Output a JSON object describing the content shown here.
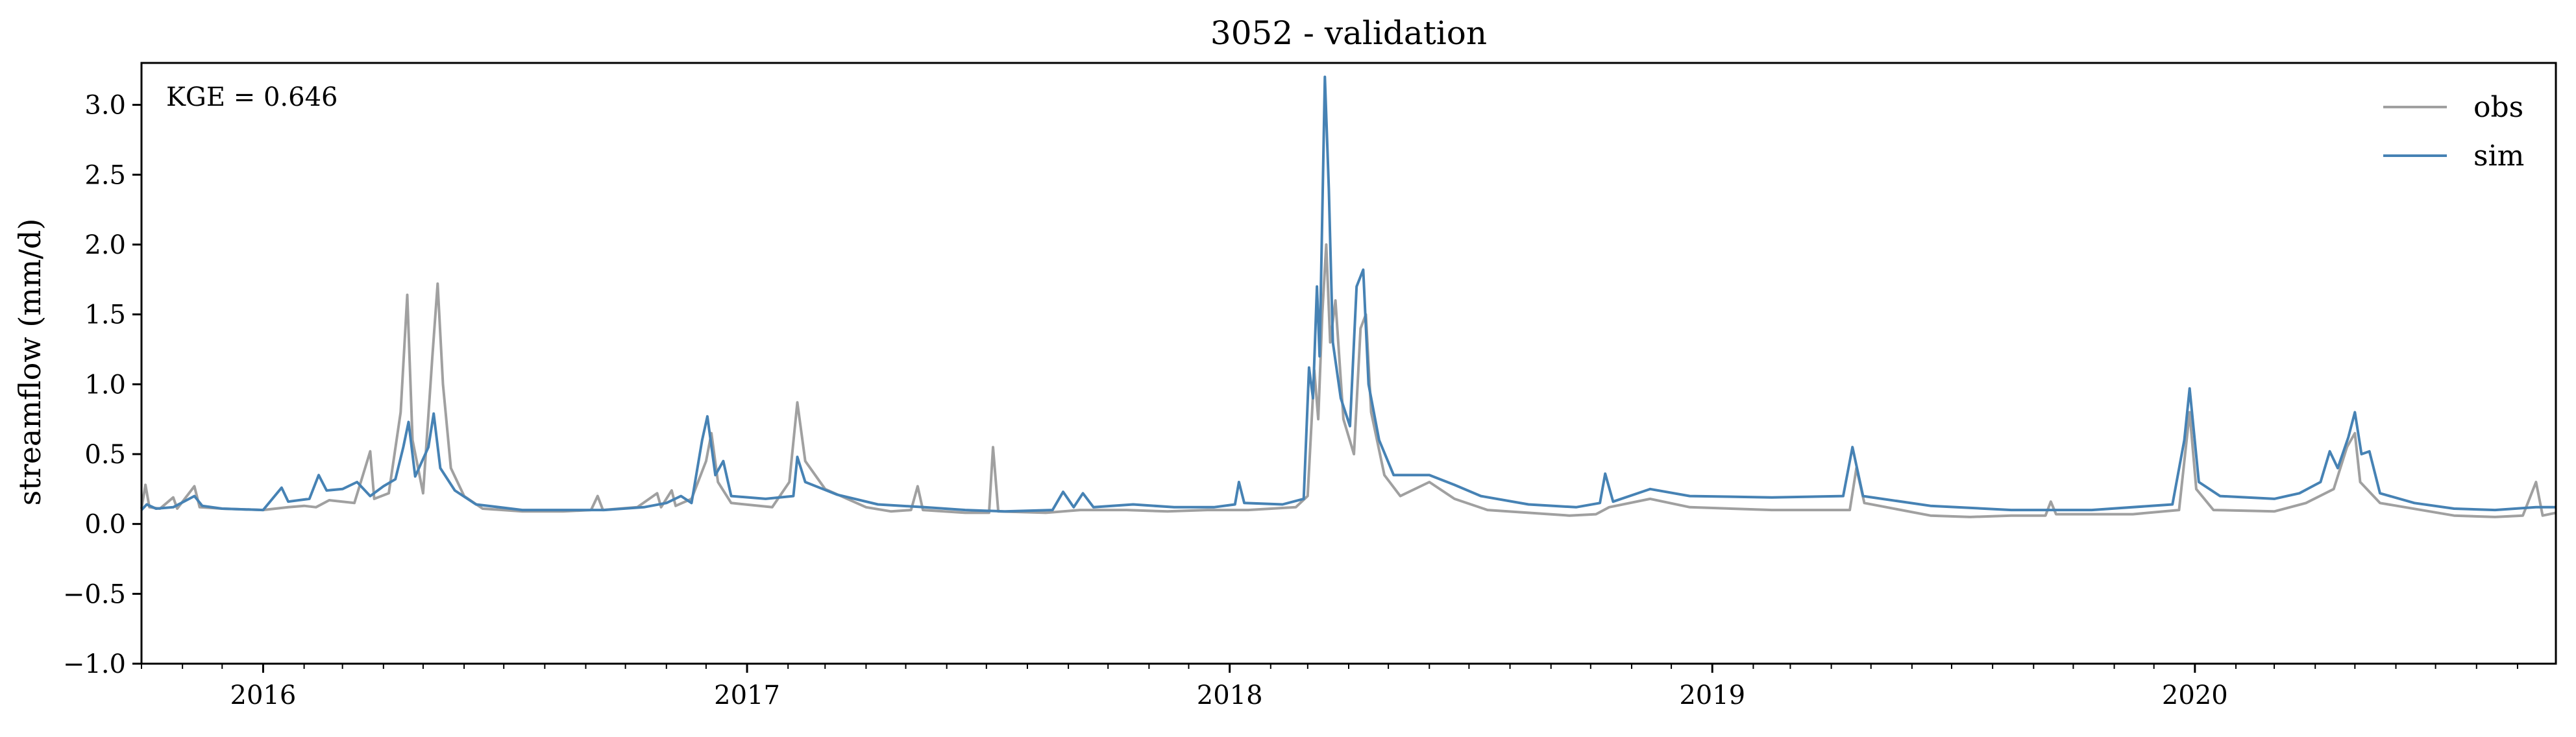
{
  "chart_data": {
    "type": "line",
    "title": "3052 - validation",
    "xlabel": "",
    "ylabel": "streamflow (mm/d)",
    "ylim": [
      -1.0,
      3.3
    ],
    "xlim": [
      "2015-10-01",
      "2020-09-30"
    ],
    "y_ticks": [
      -1.0,
      -0.5,
      0.0,
      0.5,
      1.0,
      1.5,
      2.0,
      2.5,
      3.0
    ],
    "y_tick_labels": [
      "−1.0",
      "−0.5",
      "0.0",
      "0.5",
      "1.0",
      "1.5",
      "2.0",
      "2.5",
      "3.0"
    ],
    "x_tick_labels": [
      "2016",
      "2017",
      "2018",
      "2019",
      "2020"
    ],
    "x_ticks": [
      "2016-01-01",
      "2017-01-01",
      "2018-01-01",
      "2019-01-01",
      "2020-01-01"
    ],
    "annotation": "KGE = 0.646",
    "legend": {
      "placement": "top-right",
      "entries": [
        "obs",
        "sim"
      ]
    },
    "grid": false,
    "series": [
      {
        "name": "obs",
        "color": "#a0a0a0",
        "points": [
          [
            "2015-10-01",
            0.11
          ],
          [
            "2015-10-04",
            0.28
          ],
          [
            "2015-10-07",
            0.12
          ],
          [
            "2015-10-15",
            0.11
          ],
          [
            "2015-10-25",
            0.19
          ],
          [
            "2015-10-28",
            0.11
          ],
          [
            "2015-11-10",
            0.27
          ],
          [
            "2015-11-14",
            0.12
          ],
          [
            "2015-12-01",
            0.11
          ],
          [
            "2016-01-01",
            0.1
          ],
          [
            "2016-01-20",
            0.12
          ],
          [
            "2016-02-01",
            0.13
          ],
          [
            "2016-02-10",
            0.12
          ],
          [
            "2016-02-20",
            0.17
          ],
          [
            "2016-03-10",
            0.15
          ],
          [
            "2016-03-22",
            0.52
          ],
          [
            "2016-03-25",
            0.18
          ],
          [
            "2016-04-05",
            0.22
          ],
          [
            "2016-04-14",
            0.8
          ],
          [
            "2016-04-19",
            1.64
          ],
          [
            "2016-04-23",
            0.6
          ],
          [
            "2016-05-01",
            0.22
          ],
          [
            "2016-05-08",
            1.2
          ],
          [
            "2016-05-12",
            1.72
          ],
          [
            "2016-05-16",
            1.0
          ],
          [
            "2016-05-22",
            0.4
          ],
          [
            "2016-06-01",
            0.2
          ],
          [
            "2016-06-15",
            0.11
          ],
          [
            "2016-07-15",
            0.09
          ],
          [
            "2016-08-15",
            0.09
          ],
          [
            "2016-09-05",
            0.1
          ],
          [
            "2016-09-10",
            0.2
          ],
          [
            "2016-09-14",
            0.1
          ],
          [
            "2016-10-10",
            0.12
          ],
          [
            "2016-10-25",
            0.22
          ],
          [
            "2016-10-28",
            0.12
          ],
          [
            "2016-11-05",
            0.24
          ],
          [
            "2016-11-08",
            0.13
          ],
          [
            "2016-11-20",
            0.18
          ],
          [
            "2016-12-01",
            0.45
          ],
          [
            "2016-12-05",
            0.65
          ],
          [
            "2016-12-10",
            0.3
          ],
          [
            "2016-12-20",
            0.15
          ],
          [
            "2017-01-20",
            0.12
          ],
          [
            "2017-02-02",
            0.3
          ],
          [
            "2017-02-08",
            0.87
          ],
          [
            "2017-02-14",
            0.45
          ],
          [
            "2017-03-01",
            0.25
          ],
          [
            "2017-04-01",
            0.12
          ],
          [
            "2017-04-20",
            0.09
          ],
          [
            "2017-05-05",
            0.1
          ],
          [
            "2017-05-10",
            0.27
          ],
          [
            "2017-05-14",
            0.1
          ],
          [
            "2017-06-15",
            0.08
          ],
          [
            "2017-07-03",
            0.08
          ],
          [
            "2017-07-06",
            0.55
          ],
          [
            "2017-07-10",
            0.09
          ],
          [
            "2017-08-15",
            0.08
          ],
          [
            "2017-09-10",
            0.1
          ],
          [
            "2017-10-15",
            0.1
          ],
          [
            "2017-11-15",
            0.09
          ],
          [
            "2017-12-15",
            0.1
          ],
          [
            "2018-01-15",
            0.1
          ],
          [
            "2018-02-20",
            0.12
          ],
          [
            "2018-03-01",
            0.2
          ],
          [
            "2018-03-06",
            1.1
          ],
          [
            "2018-03-09",
            0.75
          ],
          [
            "2018-03-12",
            1.5
          ],
          [
            "2018-03-15",
            2.0
          ],
          [
            "2018-03-18",
            1.3
          ],
          [
            "2018-03-22",
            1.6
          ],
          [
            "2018-03-28",
            0.75
          ],
          [
            "2018-04-05",
            0.5
          ],
          [
            "2018-04-10",
            1.4
          ],
          [
            "2018-04-14",
            1.5
          ],
          [
            "2018-04-18",
            0.8
          ],
          [
            "2018-04-28",
            0.35
          ],
          [
            "2018-05-10",
            0.2
          ],
          [
            "2018-06-01",
            0.3
          ],
          [
            "2018-06-20",
            0.18
          ],
          [
            "2018-07-15",
            0.1
          ],
          [
            "2018-08-15",
            0.08
          ],
          [
            "2018-09-15",
            0.06
          ],
          [
            "2018-10-05",
            0.07
          ],
          [
            "2018-10-15",
            0.12
          ],
          [
            "2018-11-15",
            0.18
          ],
          [
            "2018-12-15",
            0.12
          ],
          [
            "2019-02-15",
            0.1
          ],
          [
            "2019-04-15",
            0.1
          ],
          [
            "2019-04-20",
            0.4
          ],
          [
            "2019-04-26",
            0.15
          ],
          [
            "2019-06-15",
            0.06
          ],
          [
            "2019-07-15",
            0.05
          ],
          [
            "2019-08-15",
            0.06
          ],
          [
            "2019-09-10",
            0.06
          ],
          [
            "2019-09-14",
            0.16
          ],
          [
            "2019-09-18",
            0.07
          ],
          [
            "2019-11-15",
            0.07
          ],
          [
            "2019-12-20",
            0.1
          ],
          [
            "2019-12-28",
            0.8
          ],
          [
            "2020-01-02",
            0.25
          ],
          [
            "2020-01-15",
            0.1
          ],
          [
            "2020-03-01",
            0.09
          ],
          [
            "2020-03-25",
            0.15
          ],
          [
            "2020-04-15",
            0.25
          ],
          [
            "2020-04-25",
            0.55
          ],
          [
            "2020-05-01",
            0.65
          ],
          [
            "2020-05-05",
            0.3
          ],
          [
            "2020-05-20",
            0.15
          ],
          [
            "2020-07-15",
            0.06
          ],
          [
            "2020-08-15",
            0.05
          ],
          [
            "2020-09-05",
            0.06
          ],
          [
            "2020-09-15",
            0.3
          ],
          [
            "2020-09-20",
            0.06
          ],
          [
            "2020-09-30",
            0.08
          ]
        ]
      },
      {
        "name": "sim",
        "color": "#4682b4",
        "points": [
          [
            "2015-10-01",
            0.1
          ],
          [
            "2015-10-05",
            0.14
          ],
          [
            "2015-10-12",
            0.11
          ],
          [
            "2015-10-25",
            0.12
          ],
          [
            "2015-11-10",
            0.2
          ],
          [
            "2015-11-16",
            0.13
          ],
          [
            "2015-12-01",
            0.11
          ],
          [
            "2016-01-01",
            0.1
          ],
          [
            "2016-01-15",
            0.26
          ],
          [
            "2016-01-20",
            0.16
          ],
          [
            "2016-02-05",
            0.18
          ],
          [
            "2016-02-12",
            0.35
          ],
          [
            "2016-02-18",
            0.24
          ],
          [
            "2016-03-01",
            0.25
          ],
          [
            "2016-03-12",
            0.3
          ],
          [
            "2016-03-22",
            0.2
          ],
          [
            "2016-04-01",
            0.27
          ],
          [
            "2016-04-10",
            0.32
          ],
          [
            "2016-04-16",
            0.55
          ],
          [
            "2016-04-20",
            0.73
          ],
          [
            "2016-04-25",
            0.34
          ],
          [
            "2016-05-05",
            0.55
          ],
          [
            "2016-05-09",
            0.79
          ],
          [
            "2016-05-14",
            0.4
          ],
          [
            "2016-05-25",
            0.24
          ],
          [
            "2016-06-10",
            0.14
          ],
          [
            "2016-07-15",
            0.1
          ],
          [
            "2016-08-15",
            0.1
          ],
          [
            "2016-09-15",
            0.1
          ],
          [
            "2016-10-15",
            0.12
          ],
          [
            "2016-11-01",
            0.15
          ],
          [
            "2016-11-12",
            0.2
          ],
          [
            "2016-11-20",
            0.15
          ],
          [
            "2016-11-28",
            0.6
          ],
          [
            "2016-12-02",
            0.77
          ],
          [
            "2016-12-08",
            0.35
          ],
          [
            "2016-12-14",
            0.45
          ],
          [
            "2016-12-20",
            0.2
          ],
          [
            "2017-01-15",
            0.18
          ],
          [
            "2017-02-05",
            0.2
          ],
          [
            "2017-02-08",
            0.48
          ],
          [
            "2017-02-14",
            0.3
          ],
          [
            "2017-03-10",
            0.21
          ],
          [
            "2017-04-10",
            0.14
          ],
          [
            "2017-05-15",
            0.12
          ],
          [
            "2017-06-15",
            0.1
          ],
          [
            "2017-07-15",
            0.09
          ],
          [
            "2017-08-20",
            0.1
          ],
          [
            "2017-08-28",
            0.23
          ],
          [
            "2017-09-05",
            0.12
          ],
          [
            "2017-09-12",
            0.22
          ],
          [
            "2017-09-20",
            0.12
          ],
          [
            "2017-10-20",
            0.14
          ],
          [
            "2017-11-20",
            0.12
          ],
          [
            "2017-12-20",
            0.12
          ],
          [
            "2018-01-05",
            0.14
          ],
          [
            "2018-01-08",
            0.3
          ],
          [
            "2018-01-12",
            0.15
          ],
          [
            "2018-02-10",
            0.14
          ],
          [
            "2018-02-26",
            0.18
          ],
          [
            "2018-03-02",
            1.12
          ],
          [
            "2018-03-05",
            0.9
          ],
          [
            "2018-03-08",
            1.7
          ],
          [
            "2018-03-10",
            1.2
          ],
          [
            "2018-03-14",
            3.2
          ],
          [
            "2018-03-17",
            2.4
          ],
          [
            "2018-03-20",
            1.3
          ],
          [
            "2018-03-26",
            0.9
          ],
          [
            "2018-04-02",
            0.7
          ],
          [
            "2018-04-07",
            1.7
          ],
          [
            "2018-04-12",
            1.82
          ],
          [
            "2018-04-16",
            1.0
          ],
          [
            "2018-04-24",
            0.6
          ],
          [
            "2018-05-05",
            0.35
          ],
          [
            "2018-06-01",
            0.35
          ],
          [
            "2018-06-20",
            0.28
          ],
          [
            "2018-07-10",
            0.2
          ],
          [
            "2018-08-15",
            0.14
          ],
          [
            "2018-09-20",
            0.12
          ],
          [
            "2018-10-08",
            0.15
          ],
          [
            "2018-10-12",
            0.36
          ],
          [
            "2018-10-18",
            0.16
          ],
          [
            "2018-11-15",
            0.25
          ],
          [
            "2018-12-15",
            0.2
          ],
          [
            "2019-02-15",
            0.19
          ],
          [
            "2019-04-10",
            0.2
          ],
          [
            "2019-04-17",
            0.55
          ],
          [
            "2019-04-25",
            0.2
          ],
          [
            "2019-06-15",
            0.13
          ],
          [
            "2019-08-15",
            0.1
          ],
          [
            "2019-10-15",
            0.1
          ],
          [
            "2019-12-15",
            0.14
          ],
          [
            "2019-12-24",
            0.6
          ],
          [
            "2019-12-28",
            0.97
          ],
          [
            "2020-01-04",
            0.3
          ],
          [
            "2020-01-20",
            0.2
          ],
          [
            "2020-03-01",
            0.18
          ],
          [
            "2020-03-20",
            0.22
          ],
          [
            "2020-04-05",
            0.3
          ],
          [
            "2020-04-12",
            0.52
          ],
          [
            "2020-04-18",
            0.4
          ],
          [
            "2020-04-26",
            0.62
          ],
          [
            "2020-05-01",
            0.8
          ],
          [
            "2020-05-06",
            0.5
          ],
          [
            "2020-05-12",
            0.52
          ],
          [
            "2020-05-20",
            0.22
          ],
          [
            "2020-06-15",
            0.15
          ],
          [
            "2020-07-15",
            0.11
          ],
          [
            "2020-08-15",
            0.1
          ],
          [
            "2020-09-15",
            0.12
          ],
          [
            "2020-09-30",
            0.12
          ]
        ]
      }
    ]
  }
}
